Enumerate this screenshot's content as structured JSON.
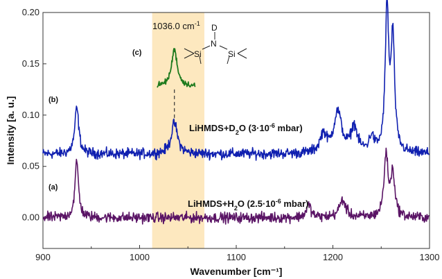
{
  "chart_data": {
    "type": "line",
    "xlabel": "Wavenumber [cm⁻¹]",
    "ylabel": "Intensity [a. u.]",
    "xlim": [
      900,
      1300
    ],
    "ylim": [
      -0.03,
      0.2
    ],
    "x_ticks": [
      900,
      1000,
      1100,
      1200,
      1300
    ],
    "x_tick_labels": [
      "900",
      "1000",
      "1100",
      "1200",
      "1300"
    ],
    "y_ticks": [
      0.0,
      0.05,
      0.1,
      0.15,
      0.2
    ],
    "y_tick_labels": [
      "0.00",
      "0.05",
      "0.10",
      "0.15",
      "0.20"
    ],
    "highlight_band": {
      "x_start": 1013,
      "x_end": 1067,
      "color": "#fde8bf"
    },
    "series": [
      {
        "label": "(b)",
        "annotation_main": "LiHMDS+D",
        "annotation_sub": "2",
        "annotation_rest": "O (3·10",
        "annotation_exp": "-6",
        "annotation_unit": " mbar)",
        "color": "#1020b0",
        "baseline": 0.062,
        "peaks": [
          {
            "x": 935,
            "height": 0.045,
            "width": 2.5
          },
          {
            "x": 1036,
            "height": 0.03,
            "width": 4
          },
          {
            "x": 1190,
            "height": 0.018,
            "width": 4
          },
          {
            "x": 1205,
            "height": 0.04,
            "width": 5
          },
          {
            "x": 1222,
            "height": 0.025,
            "width": 4
          },
          {
            "x": 1240,
            "height": 0.015,
            "width": 3
          },
          {
            "x": 1256,
            "height": 0.138,
            "width": 2.2
          },
          {
            "x": 1262,
            "height": 0.11,
            "width": 2.2
          }
        ]
      },
      {
        "label": "(a)",
        "annotation_main": "LiHMDS+H",
        "annotation_sub": "2",
        "annotation_rest": "O (2.5·10",
        "annotation_exp": "-6",
        "annotation_unit": " mbar)",
        "color": "#5a1465",
        "baseline": 0.0,
        "peaks": [
          {
            "x": 935,
            "height": 0.055,
            "width": 2.2
          },
          {
            "x": 1175,
            "height": 0.012,
            "width": 3
          },
          {
            "x": 1210,
            "height": 0.017,
            "width": 4
          },
          {
            "x": 1255,
            "height": 0.06,
            "width": 2.5
          },
          {
            "x": 1262,
            "height": 0.042,
            "width": 2.5
          }
        ]
      },
      {
        "label": "(c)",
        "annotation_main": "1036.0 cm",
        "annotation_exp": "-1",
        "color": "#1d7a1d",
        "x_range": [
          1018,
          1058
        ],
        "baseline": 0.128,
        "peaks": [
          {
            "x": 1036,
            "height": 0.036,
            "width": 3.5
          }
        ]
      }
    ],
    "molecule_atoms": [
      "D",
      "N",
      "Si",
      "Si"
    ]
  }
}
